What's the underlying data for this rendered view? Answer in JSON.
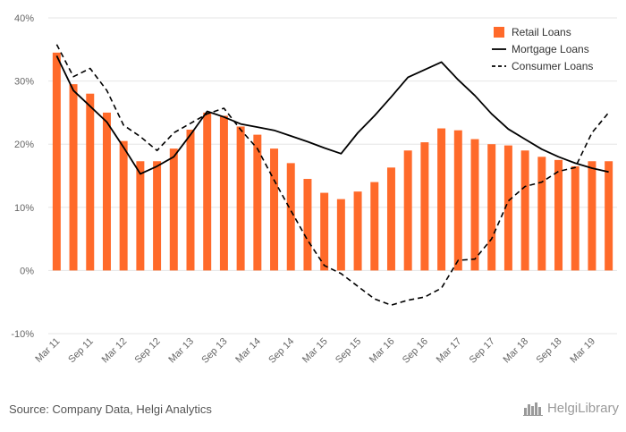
{
  "colors": {
    "retail": "#ff6a2a",
    "mortgage": "#000000",
    "consumer": "#000000",
    "grid": "#e6e6e6",
    "text": "#666666"
  },
  "chart_data": {
    "type": "bar",
    "categories": [
      "Mar 11",
      "Jun 11",
      "Sep 11",
      "Dec 11",
      "Mar 12",
      "Jun 12",
      "Sep 12",
      "Dec 12",
      "Mar 13",
      "Jun 13",
      "Sep 13",
      "Dec 13",
      "Mar 14",
      "Jun 14",
      "Sep 14",
      "Dec 14",
      "Mar 15",
      "Jun 15",
      "Sep 15",
      "Dec 15",
      "Mar 16",
      "Jun 16",
      "Sep 16",
      "Dec 16",
      "Mar 17",
      "Jun 17",
      "Sep 17",
      "Dec 17",
      "Mar 18",
      "Jun 18",
      "Sep 18",
      "Dec 18",
      "Mar 19",
      "Jun 19"
    ],
    "x_tick_labels": [
      "Mar 11",
      "Sep 11",
      "Mar 12",
      "Sep 12",
      "Mar 13",
      "Sep 13",
      "Mar 14",
      "Sep 14",
      "Mar 15",
      "Sep 15",
      "Mar 16",
      "Sep 16",
      "Mar 17",
      "Sep 17",
      "Mar 18",
      "Sep 18",
      "Mar 19"
    ],
    "series": [
      {
        "name": "Retail Loans",
        "type": "bar",
        "values": [
          34.5,
          29.5,
          28,
          25,
          20.5,
          17.3,
          17.3,
          19.3,
          22.3,
          25,
          24.5,
          22.8,
          21.5,
          19.3,
          17,
          14.5,
          12.3,
          11.3,
          12.5,
          14,
          16.3,
          19,
          20.3,
          22.5,
          22.2,
          20.8,
          20,
          19.8,
          19,
          18,
          17.5,
          16.5,
          17.3,
          17.3
        ]
      },
      {
        "name": "Mortgage Loans",
        "type": "line",
        "dash": "solid",
        "values": [
          34,
          28.5,
          26,
          23.5,
          19.5,
          15.3,
          16.5,
          18,
          21.5,
          25.2,
          24.3,
          23.2,
          22.7,
          22.2,
          21.3,
          20.4,
          19.4,
          18.5,
          21.8,
          24.5,
          27.5,
          30.6,
          31.8,
          33,
          30.2,
          27.7,
          24.8,
          22.4,
          20.8,
          19.2,
          18,
          17,
          16.2,
          15.6
        ]
      },
      {
        "name": "Consumer Loans",
        "type": "line",
        "dash": "dashed",
        "values": [
          35.8,
          30.7,
          32,
          28.5,
          23,
          21.2,
          19,
          21.8,
          23.3,
          24.8,
          25.7,
          22.3,
          19.3,
          14.3,
          9.5,
          4.8,
          0.8,
          -0.5,
          -2.5,
          -4.5,
          -5.5,
          -4.7,
          -4.2,
          -2.8,
          1.6,
          1.8,
          5,
          11,
          13.3,
          14,
          15.7,
          16.3,
          21.8,
          25
        ]
      }
    ],
    "ylim": [
      -10,
      40
    ],
    "y_ticks": [
      -10,
      0,
      10,
      20,
      30,
      40
    ],
    "y_tick_labels": [
      "-10%",
      "0%",
      "10%",
      "20%",
      "30%",
      "40%"
    ],
    "y_unit": "%",
    "grid": "horizontal",
    "legend_position": "top-right"
  },
  "footer": {
    "source": "Source: Company Data, Helgi Analytics",
    "logo_text": "HelgiLibrary"
  }
}
